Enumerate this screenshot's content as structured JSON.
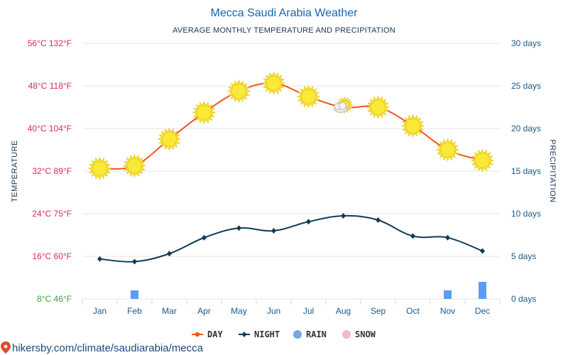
{
  "chart_data": {
    "type": "line",
    "title": "Mecca Saudi Arabia Weather",
    "subtitle": "AVERAGE MONTHLY TEMPERATURE AND PRECIPITATION",
    "left_axis_label": "TEMPERATURE",
    "right_axis_label": "PRECIPITATION",
    "categories": [
      "Jan",
      "Feb",
      "Mar",
      "Apr",
      "May",
      "Jun",
      "Jul",
      "Aug",
      "Sep",
      "Oct",
      "Nov",
      "Dec"
    ],
    "left_ticks": [
      {
        "c": 8,
        "label": "8°C 46°F",
        "color": "#3aa53a"
      },
      {
        "c": 16,
        "label": "16°C 60°F",
        "color": "#e0245e"
      },
      {
        "c": 24,
        "label": "24°C 75°F",
        "color": "#e0245e"
      },
      {
        "c": 32,
        "label": "32°C 89°F",
        "color": "#e0245e"
      },
      {
        "c": 40,
        "label": "40°C 104°F",
        "color": "#e0245e"
      },
      {
        "c": 48,
        "label": "48°C 118°F",
        "color": "#e0245e"
      },
      {
        "c": 56,
        "label": "56°C 132°F",
        "color": "#e0245e"
      }
    ],
    "right_ticks": [
      {
        "d": 0,
        "label": "0 days"
      },
      {
        "d": 5,
        "label": "5 days"
      },
      {
        "d": 10,
        "label": "10 days"
      },
      {
        "d": 15,
        "label": "15 days"
      },
      {
        "d": 20,
        "label": "20 days"
      },
      {
        "d": 25,
        "label": "25 days"
      },
      {
        "d": 30,
        "label": "30 days"
      }
    ],
    "temp_range_c": [
      8,
      56
    ],
    "days_range": [
      0,
      30
    ],
    "series": [
      {
        "name": "DAY",
        "color": "#f2541b",
        "values": [
          32.5,
          33,
          38,
          43,
          47,
          48.5,
          46,
          44,
          44,
          40.5,
          36,
          34
        ]
      },
      {
        "name": "NIGHT",
        "color": "#103b57",
        "values": [
          15.5,
          15,
          16.5,
          19.5,
          21.3,
          20.8,
          22.5,
          23.6,
          22.8,
          19.8,
          19.5,
          17
        ]
      }
    ],
    "rain_days": [
      0,
      1,
      0,
      0,
      0,
      0,
      0,
      0,
      0,
      0,
      1,
      2
    ],
    "rain_color": "#5b9cf6",
    "day_icons": [
      "sun",
      "sun",
      "sun",
      "sun",
      "sun",
      "sun",
      "sun",
      "sun-cloud",
      "sun",
      "sun",
      "sun",
      "sun"
    ],
    "legend": [
      {
        "label": "DAY",
        "kind": "line",
        "color": "#f2541b"
      },
      {
        "label": "NIGHT",
        "kind": "line",
        "color": "#103b57"
      },
      {
        "label": "RAIN",
        "kind": "dot",
        "color": "#74a8e8"
      },
      {
        "label": "SNOW",
        "kind": "dot",
        "color": "#f5b8c8"
      }
    ],
    "legend_position": "bottom-center",
    "grid": true
  },
  "source_text": "hikersby.com/climate/saudiarabia/mecca"
}
